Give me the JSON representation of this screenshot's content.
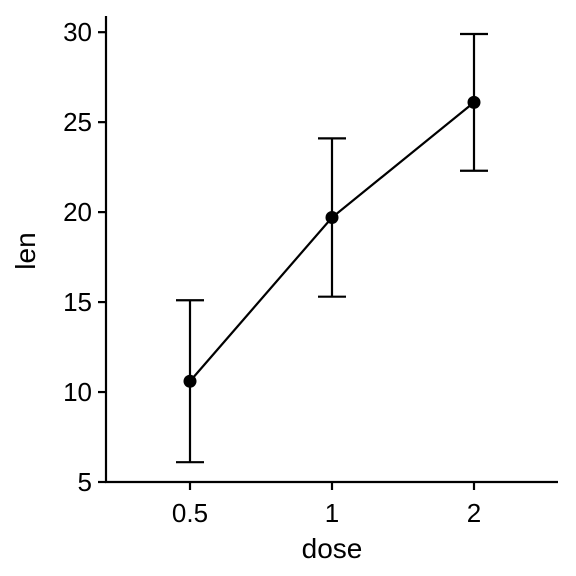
{
  "chart_data": {
    "type": "line",
    "title": "",
    "xlabel": "dose",
    "ylabel": "len",
    "categories": [
      "0.5",
      "1",
      "2"
    ],
    "y_ticks": [
      5,
      10,
      15,
      20,
      25,
      30
    ],
    "ylim": [
      5,
      30.9
    ],
    "grid": false,
    "legend": "none",
    "series": [
      {
        "values": [
          10.6,
          19.7,
          26.1
        ],
        "error_low": [
          6.1,
          15.3,
          22.3
        ],
        "error_high": [
          15.1,
          24.1,
          29.9
        ]
      }
    ],
    "colors": {
      "line": "#000000",
      "point": "#000000",
      "axis": "#000000"
    }
  }
}
